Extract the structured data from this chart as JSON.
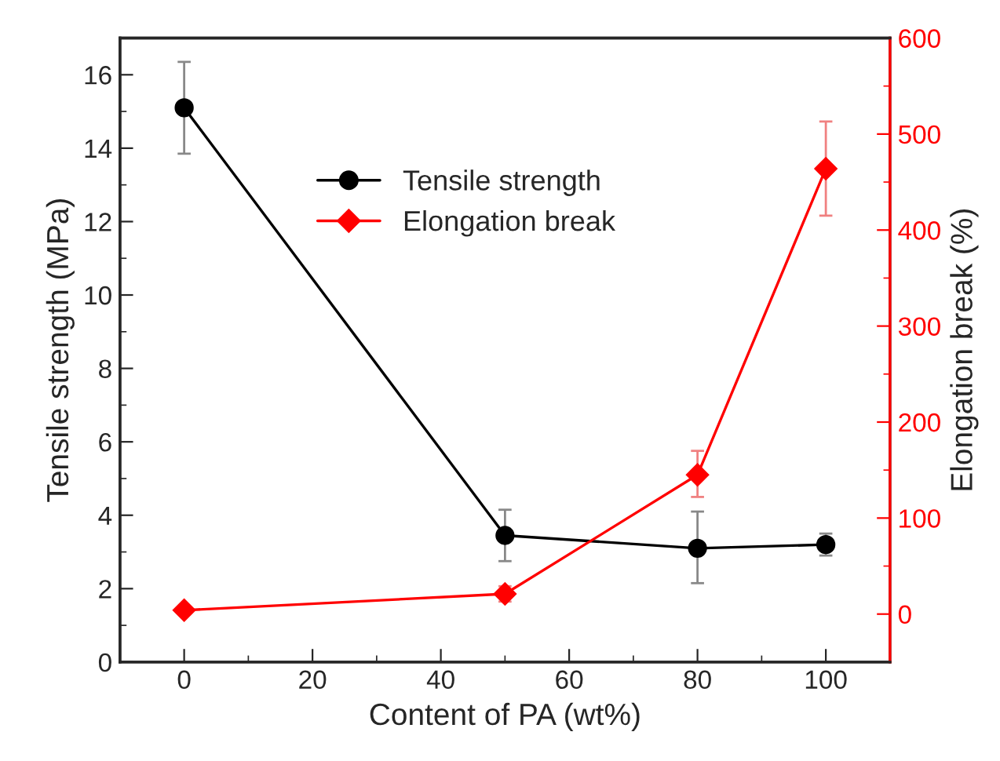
{
  "chart_data": {
    "type": "line",
    "xlabel": "Content of PA (wt%)",
    "ylabel": "Tensile strength (MPa)",
    "y2label": "Elongation break (%)",
    "x": [
      0,
      50,
      80,
      100
    ],
    "series": [
      {
        "name": "Tensile strength",
        "color": "#000000",
        "marker": "circle",
        "values": [
          15.1,
          3.45,
          3.1,
          3.2
        ],
        "errors": [
          [
            13.85,
            16.35
          ],
          [
            2.75,
            4.15
          ],
          [
            2.15,
            4.1
          ],
          [
            2.9,
            3.5
          ]
        ]
      },
      {
        "name": "Elongation break",
        "color": "#ff0000",
        "marker": "diamond",
        "axis": "y2",
        "values": [
          4,
          21,
          145,
          464
        ],
        "errors": [
          null,
          [
            13,
            29
          ],
          [
            122,
            170
          ],
          [
            415,
            513
          ]
        ]
      }
    ],
    "xlim": [
      -10,
      110
    ],
    "xticks": [
      0,
      20,
      40,
      60,
      80,
      100
    ],
    "ylim": [
      0,
      17
    ],
    "yticks": [
      0,
      2,
      4,
      6,
      8,
      10,
      12,
      14,
      16
    ],
    "y2lim": [
      -50,
      600
    ],
    "y2ticks": [
      0,
      100,
      200,
      300,
      400,
      500,
      600
    ],
    "legend": "top",
    "grid": false
  }
}
